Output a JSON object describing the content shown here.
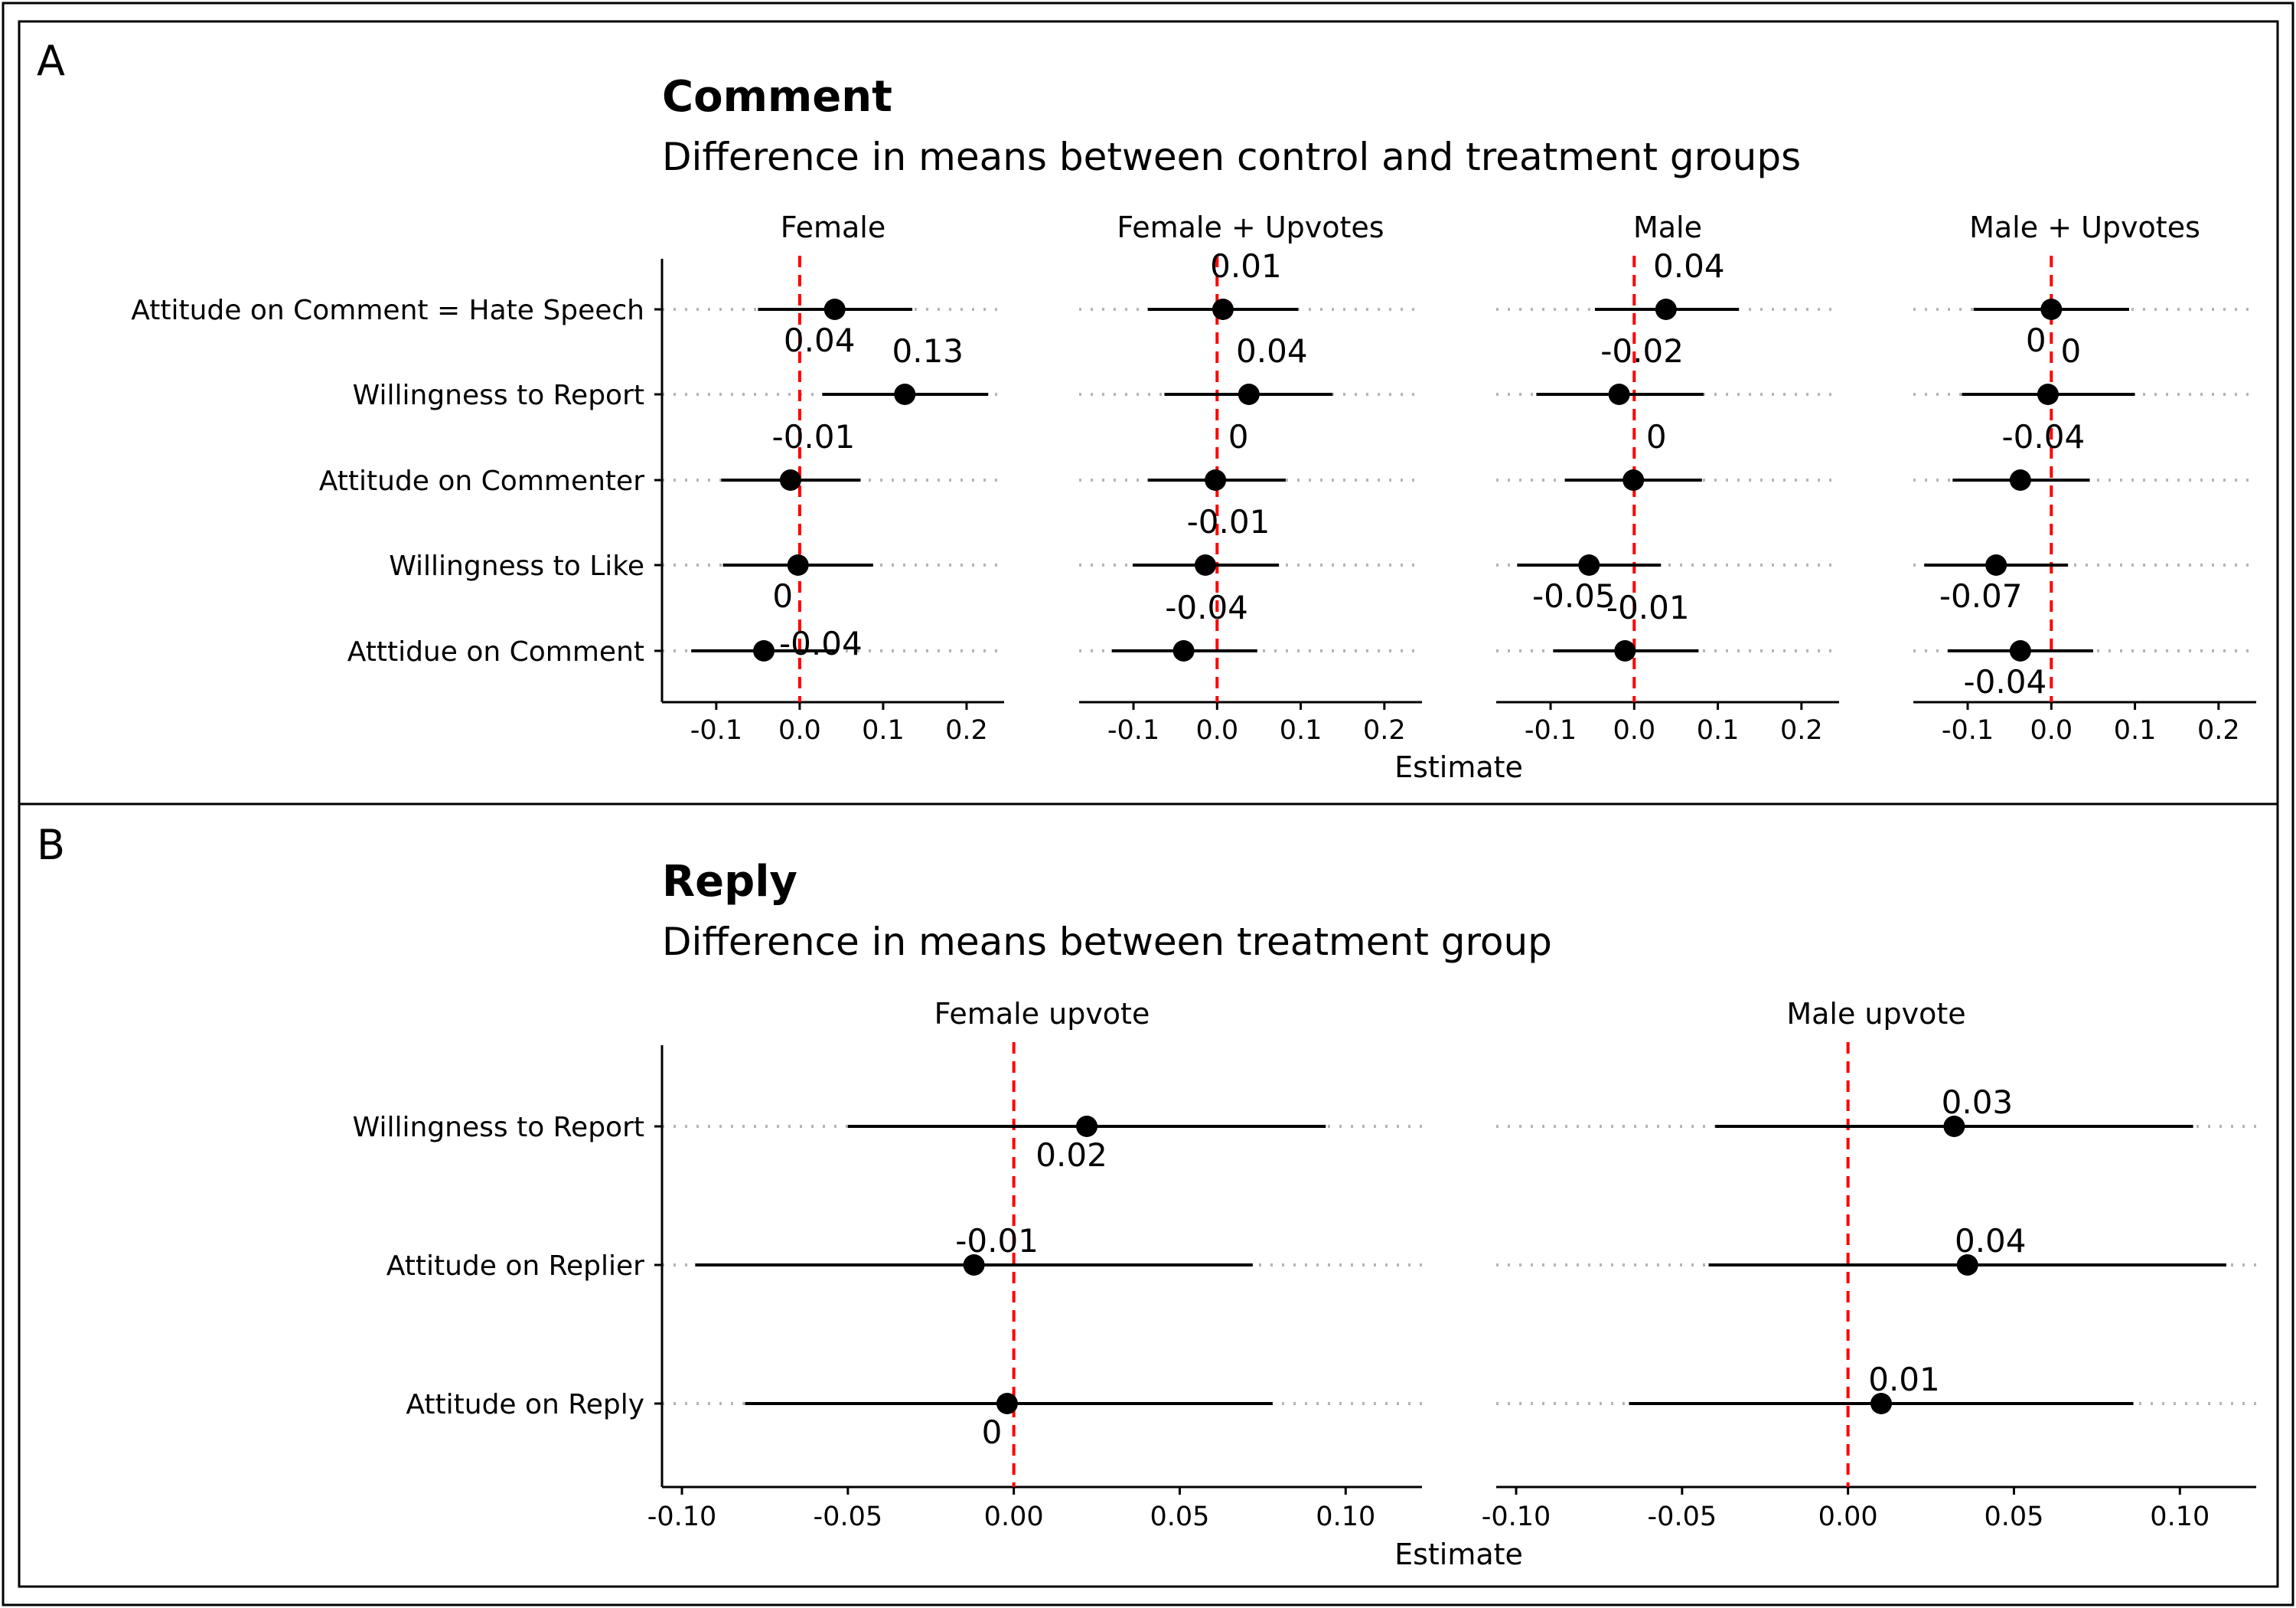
{
  "chart_data": [
    {
      "panel_label": "A",
      "type": "scatter",
      "title": "Comment",
      "subtitle": "Difference in means between control and treatment groups",
      "xlabel": "Estimate",
      "ylabel": "",
      "xlim": [
        -0.165,
        0.245
      ],
      "xticks": [
        -0.1,
        0.0,
        0.1,
        0.2
      ],
      "xtick_labels": [
        "-0.1",
        "0.0",
        "0.1",
        "0.2"
      ],
      "grid": "dotted horizontal gridlines at each category",
      "reference_line": {
        "x": 0,
        "color": "#ff0000",
        "style": "dashed"
      },
      "categories": [
        "Attitude on Comment = Hate Speech",
        "Willingness to Report",
        "Attitude on Commenter",
        "Willingness to Like",
        "Atttidue on Comment"
      ],
      "facets": [
        {
          "name": "Female",
          "points": [
            {
              "category": "Attitude on Comment = Hate Speech",
              "estimate": 0.042,
              "ci": [
                -0.05,
                0.135
              ],
              "label": "0.04",
              "label_pos": "below"
            },
            {
              "category": "Willingness to Report",
              "estimate": 0.126,
              "ci": [
                0.027,
                0.226
              ],
              "label": "0.13",
              "label_pos": "above"
            },
            {
              "category": "Attitude on Commenter",
              "estimate": -0.011,
              "ci": [
                -0.094,
                0.073
              ],
              "label": "-0.01",
              "label_pos": "above"
            },
            {
              "category": "Willingness to Like",
              "estimate": -0.002,
              "ci": [
                -0.092,
                0.088
              ],
              "label": "0",
              "label_pos": "below"
            },
            {
              "category": "Atttidue on Comment",
              "estimate": -0.043,
              "ci": [
                -0.13,
                0.045
              ],
              "label": "-0.04",
              "label_pos": "right"
            }
          ]
        },
        {
          "name": "Female + Upvotes",
          "points": [
            {
              "category": "Attitude on Comment = Hate Speech",
              "estimate": 0.007,
              "ci": [
                -0.083,
                0.097
              ],
              "label": "0.01",
              "label_pos": "above"
            },
            {
              "category": "Willingness to Report",
              "estimate": 0.038,
              "ci": [
                -0.063,
                0.138
              ],
              "label": "0.04",
              "label_pos": "above"
            },
            {
              "category": "Attitude on Commenter",
              "estimate": -0.002,
              "ci": [
                -0.083,
                0.082
              ],
              "label": "0",
              "label_pos": "above"
            },
            {
              "category": "Willingness to Like",
              "estimate": -0.014,
              "ci": [
                -0.101,
                0.074
              ],
              "label": "-0.01",
              "label_pos": "above"
            },
            {
              "category": "Atttidue on Comment",
              "estimate": -0.04,
              "ci": [
                -0.126,
                0.048
              ],
              "label": "-0.04",
              "label_pos": "above"
            }
          ]
        },
        {
          "name": "Male",
          "points": [
            {
              "category": "Attitude on Comment = Hate Speech",
              "estimate": 0.038,
              "ci": [
                -0.047,
                0.125
              ],
              "label": "0.04",
              "label_pos": "above"
            },
            {
              "category": "Willingness to Report",
              "estimate": -0.018,
              "ci": [
                -0.117,
                0.083
              ],
              "label": "-0.02",
              "label_pos": "above"
            },
            {
              "category": "Attitude on Commenter",
              "estimate": -0.001,
              "ci": [
                -0.083,
                0.081
              ],
              "label": "0",
              "label_pos": "above"
            },
            {
              "category": "Willingness to Like",
              "estimate": -0.054,
              "ci": [
                -0.14,
                0.032
              ],
              "label": "-0.05",
              "label_pos": "below"
            },
            {
              "category": "Atttidue on Comment",
              "estimate": -0.011,
              "ci": [
                -0.097,
                0.077
              ],
              "label": "-0.01",
              "label_pos": "above"
            }
          ]
        },
        {
          "name": "Male + Upvotes",
          "points": [
            {
              "category": "Attitude on Comment = Hate Speech",
              "estimate": 0.0,
              "ci": [
                -0.093,
                0.093
              ],
              "label": "0",
              "label_pos": "below"
            },
            {
              "category": "Willingness to Report",
              "estimate": -0.004,
              "ci": [
                -0.107,
                0.1
              ],
              "label": "0",
              "label_pos": "above"
            },
            {
              "category": "Attitude on Commenter",
              "estimate": -0.037,
              "ci": [
                -0.118,
                0.046
              ],
              "label": "-0.04",
              "label_pos": "above"
            },
            {
              "category": "Willingness to Like",
              "estimate": -0.066,
              "ci": [
                -0.152,
                0.02
              ],
              "label": "-0.07",
              "label_pos": "below"
            },
            {
              "category": "Atttidue on Comment",
              "estimate": -0.037,
              "ci": [
                -0.124,
                0.05
              ],
              "label": "-0.04",
              "label_pos": "below"
            }
          ]
        }
      ]
    },
    {
      "panel_label": "B",
      "type": "scatter",
      "title": "Reply",
      "subtitle": "Difference in means between treatment group",
      "xlabel": "Estimate",
      "ylabel": "",
      "xlim": [
        -0.106,
        0.123
      ],
      "xticks": [
        -0.1,
        -0.05,
        0.0,
        0.05,
        0.1
      ],
      "xtick_labels": [
        "-0.10",
        "-0.05",
        "0.00",
        "0.05",
        "0.10"
      ],
      "grid": "dotted horizontal gridlines at each category",
      "reference_line": {
        "x": 0,
        "color": "#ff0000",
        "style": "dashed"
      },
      "categories": [
        "Willingness to Report",
        "Attitude on Replier",
        "Attitude on Reply"
      ],
      "facets": [
        {
          "name": "Female upvote",
          "points": [
            {
              "category": "Willingness to Report",
              "estimate": 0.022,
              "ci": [
                -0.05,
                0.094
              ],
              "label": "0.02",
              "label_pos": "below"
            },
            {
              "category": "Attitude on Replier",
              "estimate": -0.012,
              "ci": [
                -0.096,
                0.072
              ],
              "label": "-0.01",
              "label_pos": "above"
            },
            {
              "category": "Attitude on Reply",
              "estimate": -0.002,
              "ci": [
                -0.081,
                0.078
              ],
              "label": "0",
              "label_pos": "below"
            }
          ]
        },
        {
          "name": "Male upvote",
          "points": [
            {
              "category": "Willingness to Report",
              "estimate": 0.032,
              "ci": [
                -0.04,
                0.104
              ],
              "label": "0.03",
              "label_pos": "above"
            },
            {
              "category": "Attitude on Replier",
              "estimate": 0.036,
              "ci": [
                -0.042,
                0.114
              ],
              "label": "0.04",
              "label_pos": "above"
            },
            {
              "category": "Attitude on Reply",
              "estimate": 0.01,
              "ci": [
                -0.066,
                0.086
              ],
              "label": "0.01",
              "label_pos": "above"
            }
          ]
        }
      ]
    }
  ]
}
